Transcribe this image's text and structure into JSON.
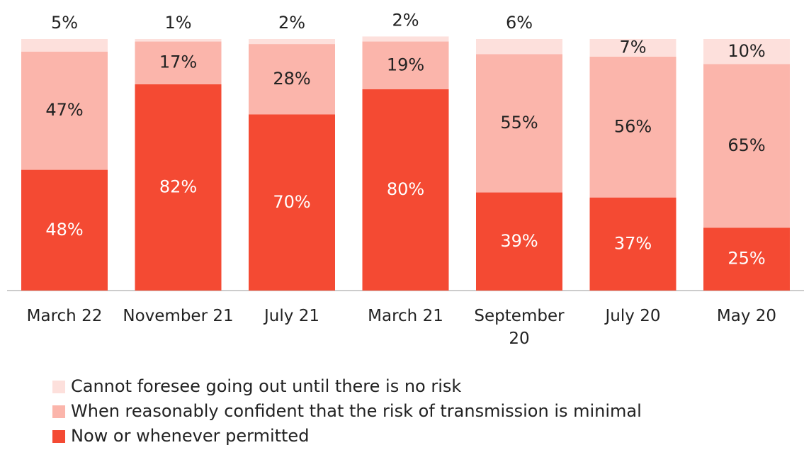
{
  "chart_data": {
    "type": "stacked_bar",
    "categories": [
      "March 22",
      "November 21",
      "July 21",
      "March 21",
      "September 20",
      "July 20",
      "May 20"
    ],
    "series": [
      {
        "name": "Now or whenever permitted",
        "color": "#f44a33",
        "values": [
          48,
          82,
          70,
          80,
          39,
          37,
          25
        ]
      },
      {
        "name": "When reasonably confident that the risk of transmission is minimal",
        "color": "#fbb5ab",
        "values": [
          47,
          17,
          28,
          19,
          55,
          56,
          65
        ]
      },
      {
        "name": "Cannot foresee going out until there is no risk",
        "color": "#fde0dc",
        "values": [
          5,
          1,
          2,
          2,
          6,
          7,
          10
        ]
      }
    ],
    "value_labels": [
      [
        "48%",
        "82%",
        "70%",
        "80%",
        "39%",
        "37%",
        "25%"
      ],
      [
        "47%",
        "17%",
        "28%",
        "19%",
        "55%",
        "56%",
        "65%"
      ],
      [
        "5%",
        "1%",
        "2%",
        "2%",
        "6%",
        "7%",
        "10%"
      ]
    ]
  }
}
